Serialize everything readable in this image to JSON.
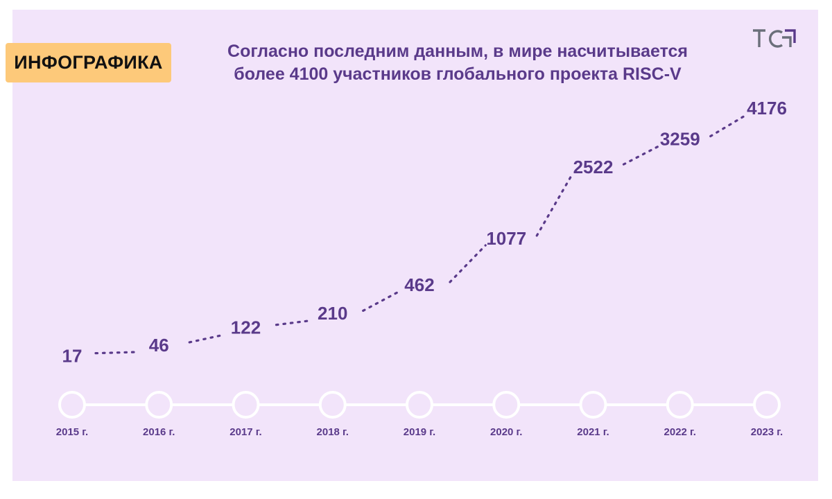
{
  "badge_label": "ИНФОГРАФИКА",
  "title_line1": "Согласно последним данным, в мире насчитывается",
  "title_line2": "более 4100 участников глобального проекта RISC-V",
  "logo_icon": "tc-logo-icon",
  "colors": {
    "panel": "#f2e4fa",
    "badge": "#fdc97a",
    "accent": "#5a3a8a",
    "timeline": "#ffffff"
  },
  "chart_data": {
    "type": "line",
    "style": "dotted",
    "categories": [
      "2015 г.",
      "2016 г.",
      "2017 г.",
      "2018 г.",
      "2019 г.",
      "2020 г.",
      "2021 г.",
      "2022 г.",
      "2023 г."
    ],
    "values": [
      17,
      46,
      122,
      210,
      462,
      1077,
      2522,
      3259,
      4176
    ],
    "value_labels": [
      "17",
      "46",
      "122",
      "210",
      "462",
      "1077",
      "2522",
      "3259",
      "4176"
    ],
    "title": "",
    "xlabel": "",
    "ylabel": "",
    "grid": false,
    "legend": "none"
  }
}
